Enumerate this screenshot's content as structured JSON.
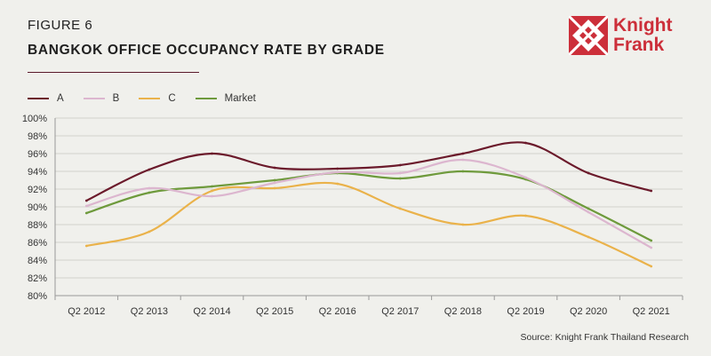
{
  "figure_label": "FIGURE 6",
  "figure_title": "BANGKOK OFFICE OCCUPANCY RATE BY GRADE",
  "logo": {
    "line1": "Knight",
    "line2": "Frank",
    "color": "#cc2f3a"
  },
  "source": "Source: Knight Frank Thailand Research",
  "chart_data": {
    "type": "line",
    "title": "BANGKOK OFFICE OCCUPANCY RATE BY GRADE",
    "xlabel": "",
    "ylabel": "",
    "categories": [
      "Q2 2012",
      "Q2 2013",
      "Q2 2014",
      "Q2 2015",
      "Q2 2016",
      "Q2 2017",
      "Q2 2018",
      "Q2 2019",
      "Q2 2020",
      "Q2 2021"
    ],
    "ylim": [
      80,
      100
    ],
    "yticks": [
      80,
      82,
      84,
      86,
      88,
      90,
      92,
      94,
      96,
      98,
      100
    ],
    "ytick_labels": [
      "80%",
      "82%",
      "84%",
      "86%",
      "88%",
      "90%",
      "92%",
      "94%",
      "96%",
      "98%",
      "100%"
    ],
    "grid": true,
    "legend_position": "top-left",
    "series": [
      {
        "name": "A",
        "color": "#6b1a2b",
        "values": [
          90.7,
          94.2,
          96.0,
          94.4,
          94.3,
          94.7,
          96.0,
          97.2,
          93.8,
          91.8
        ]
      },
      {
        "name": "B",
        "color": "#dcb6cf",
        "values": [
          90.1,
          92.1,
          91.2,
          92.7,
          93.9,
          93.8,
          95.3,
          93.3,
          89.4,
          85.4
        ]
      },
      {
        "name": "C",
        "color": "#eab24a",
        "values": [
          85.6,
          87.2,
          91.8,
          92.1,
          92.6,
          89.8,
          88.0,
          89.0,
          86.6,
          83.3
        ]
      },
      {
        "name": "Market",
        "color": "#6e9a3c",
        "values": [
          89.3,
          91.6,
          92.3,
          93.0,
          93.8,
          93.2,
          94.0,
          93.1,
          89.8,
          86.2
        ]
      }
    ]
  }
}
